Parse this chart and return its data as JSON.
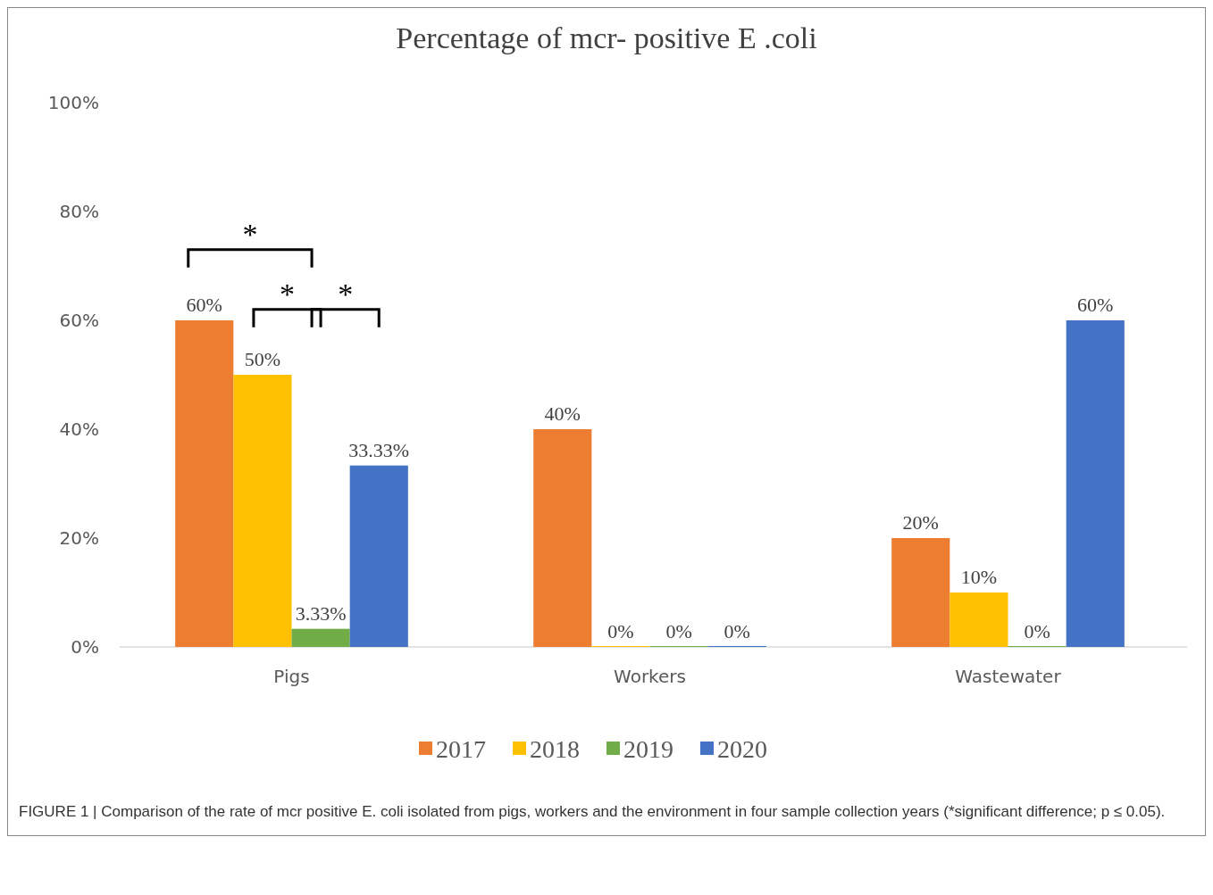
{
  "chart_data": {
    "type": "bar",
    "title": "Percentage of mcr- positive E .coli",
    "categories": [
      "Pigs",
      "Workers",
      "Wastewater"
    ],
    "series": [
      {
        "name": "2017",
        "color": "#ed7d31",
        "values": [
          60,
          40,
          20
        ],
        "value_labels": [
          "60%",
          "40%",
          "20%"
        ]
      },
      {
        "name": "2018",
        "color": "#ffc000",
        "values": [
          50,
          0,
          10
        ],
        "value_labels": [
          "50%",
          "0%",
          "10%"
        ]
      },
      {
        "name": "2019",
        "color": "#70ad47",
        "values": [
          3.33,
          0,
          0
        ],
        "value_labels": [
          "3.33%",
          "0%",
          "0%"
        ]
      },
      {
        "name": "2020",
        "color": "#4472c4",
        "values": [
          33.33,
          0,
          60
        ],
        "value_labels": [
          "33.33%",
          "0%",
          "60%"
        ]
      }
    ],
    "ylim": [
      0,
      100
    ],
    "yticks": [
      {
        "value": 0,
        "label": "0%"
      },
      {
        "value": 20,
        "label": "20%"
      },
      {
        "value": 40,
        "label": "40%"
      },
      {
        "value": 60,
        "label": "60%"
      },
      {
        "value": 80,
        "label": "80%"
      },
      {
        "value": 100,
        "label": "100%"
      }
    ],
    "grid": false,
    "legend": "bottom",
    "annotations": [
      "*",
      "*",
      "*",
      "FIGURE 1 | Comparison of the rate of mcr positive E. coli isolated from pigs, workers and the environment in four sample collection years (*significant difference; p ≤ 0.05)."
    ]
  }
}
